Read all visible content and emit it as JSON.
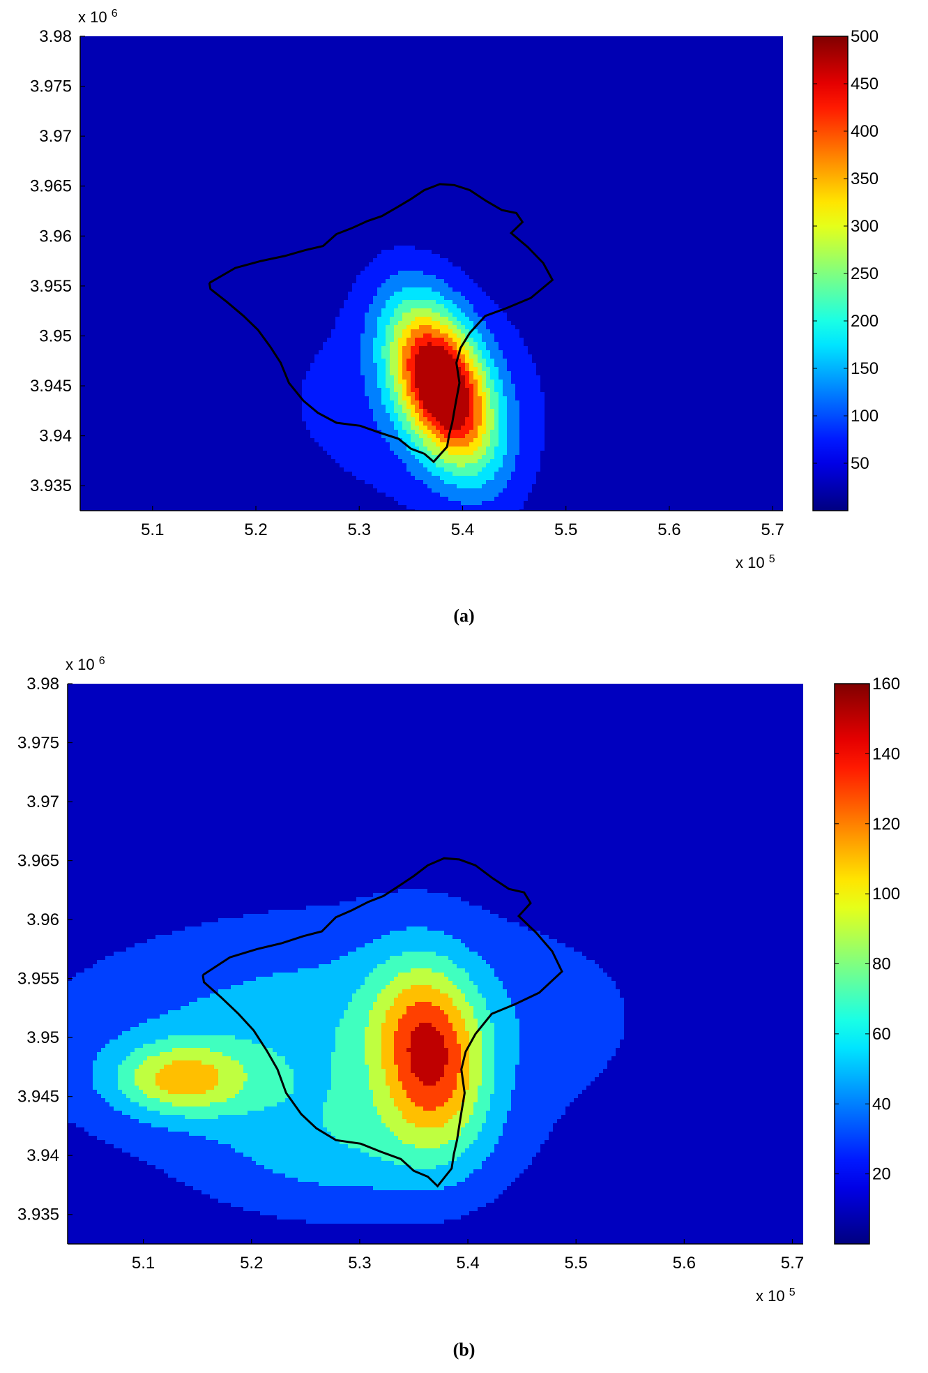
{
  "figures": [
    {
      "id": "a",
      "caption": "(a)",
      "chart_data": {
        "type": "heatmap",
        "subtype": "filled-contour-map",
        "title": "",
        "xlabel": "",
        "ylabel": "",
        "xlim": [
          503000,
          571000
        ],
        "ylim": [
          3932500,
          3980000
        ],
        "x_ticks": [
          510000,
          520000,
          530000,
          540000,
          550000,
          560000,
          570000
        ],
        "x_tick_labels": [
          "5.1",
          "5.2",
          "5.3",
          "5.4",
          "5.5",
          "5.6",
          "5.7"
        ],
        "x_multiplier": "x 10",
        "x_multiplier_exp": "5",
        "y_ticks": [
          3935000,
          3940000,
          3945000,
          3950000,
          3955000,
          3960000,
          3965000,
          3970000,
          3975000,
          3980000
        ],
        "y_tick_labels": [
          "3.935",
          "3.94",
          "3.945",
          "3.95",
          "3.955",
          "3.96",
          "3.965",
          "3.97",
          "3.975",
          "3.98"
        ],
        "y_multiplier": "x 10",
        "y_multiplier_exp": "6",
        "colorbar": {
          "min": 0,
          "max": 500,
          "ticks": [
            50,
            100,
            150,
            200,
            250,
            300,
            350,
            400,
            450,
            500
          ],
          "tick_labels": [
            "50",
            "100",
            "150",
            "200",
            "250",
            "300",
            "350",
            "400",
            "450",
            "500"
          ]
        },
        "contour_step": 50,
        "sources": [
          {
            "x": 538000,
            "y": 3945000,
            "value": 500,
            "sx": 3000,
            "sy": 6000,
            "rot": 0.35
          },
          {
            "x": 537000,
            "y": 3943000,
            "value": 60,
            "sx": 9000,
            "sy": 9000,
            "rot": 0
          },
          {
            "x": 524000,
            "y": 3944000,
            "value": 18,
            "sx": 16000,
            "sy": 7000,
            "rot": 0.1
          }
        ],
        "background_value": 10
      }
    },
    {
      "id": "b",
      "caption": "(b)",
      "chart_data": {
        "type": "heatmap",
        "subtype": "filled-contour-map",
        "title": "",
        "xlabel": "",
        "ylabel": "",
        "xlim": [
          503000,
          571000
        ],
        "ylim": [
          3932500,
          3980000
        ],
        "x_ticks": [
          510000,
          520000,
          530000,
          540000,
          550000,
          560000,
          570000
        ],
        "x_tick_labels": [
          "5.1",
          "5.2",
          "5.3",
          "5.4",
          "5.5",
          "5.6",
          "5.7"
        ],
        "x_multiplier": "x 10",
        "x_multiplier_exp": "5",
        "y_ticks": [
          3935000,
          3940000,
          3945000,
          3950000,
          3955000,
          3960000,
          3965000,
          3970000,
          3975000,
          3980000
        ],
        "y_tick_labels": [
          "3.935",
          "3.94",
          "3.945",
          "3.95",
          "3.955",
          "3.96",
          "3.965",
          "3.97",
          "3.975",
          "3.98"
        ],
        "y_multiplier": "x 10",
        "y_multiplier_exp": "6",
        "colorbar": {
          "min": 0,
          "max": 160,
          "ticks": [
            20,
            40,
            60,
            80,
            100,
            120,
            140,
            160
          ],
          "tick_labels": [
            "20",
            "40",
            "60",
            "80",
            "100",
            "120",
            "140",
            "160"
          ]
        },
        "contour_step": 20,
        "sources": [
          {
            "x": 536500,
            "y": 3948500,
            "value": 105,
            "sx": 3500,
            "sy": 5500,
            "rot": 0.15
          },
          {
            "x": 513500,
            "y": 3946500,
            "value": 75,
            "sx": 4500,
            "sy": 2200,
            "rot": 0
          },
          {
            "x": 527000,
            "y": 3950500,
            "value": 45,
            "sx": 17000,
            "sy": 6500,
            "rot": 0.05
          },
          {
            "x": 529000,
            "y": 3940500,
            "value": 35,
            "sx": 9000,
            "sy": 4000,
            "rot": 0
          }
        ],
        "background_value": 8
      }
    }
  ],
  "coastline": [
    [
      515500,
      3955300
    ],
    [
      518000,
      3956800
    ],
    [
      520500,
      3957500
    ],
    [
      522800,
      3958000
    ],
    [
      524800,
      3958600
    ],
    [
      526500,
      3959000
    ],
    [
      527800,
      3960200
    ],
    [
      529300,
      3960800
    ],
    [
      530800,
      3961500
    ],
    [
      532200,
      3962000
    ],
    [
      533700,
      3962900
    ],
    [
      535000,
      3963700
    ],
    [
      536300,
      3964600
    ],
    [
      537800,
      3965200
    ],
    [
      539200,
      3965100
    ],
    [
      540700,
      3964600
    ],
    [
      542300,
      3963500
    ],
    [
      543800,
      3962600
    ],
    [
      545200,
      3962300
    ],
    [
      545800,
      3961400
    ],
    [
      544700,
      3960300
    ],
    [
      546300,
      3958900
    ],
    [
      547800,
      3957300
    ],
    [
      548700,
      3955600
    ],
    [
      546600,
      3953800
    ],
    [
      544300,
      3952800
    ],
    [
      542200,
      3952000
    ],
    [
      540700,
      3950300
    ],
    [
      539800,
      3948800
    ],
    [
      539400,
      3947300
    ],
    [
      539700,
      3945300
    ],
    [
      539300,
      3943100
    ],
    [
      539000,
      3941300
    ],
    [
      538700,
      3940100
    ],
    [
      538500,
      3938900
    ],
    [
      537200,
      3937400
    ],
    [
      536300,
      3938200
    ],
    [
      535000,
      3938700
    ],
    [
      533800,
      3939700
    ],
    [
      532000,
      3940300
    ],
    [
      530100,
      3941000
    ],
    [
      527800,
      3941300
    ],
    [
      526000,
      3942300
    ],
    [
      524600,
      3943500
    ],
    [
      523200,
      3945300
    ],
    [
      522400,
      3947300
    ],
    [
      521400,
      3948900
    ],
    [
      520200,
      3950600
    ],
    [
      518800,
      3952000
    ],
    [
      517200,
      3953400
    ],
    [
      515600,
      3954700
    ],
    [
      515500,
      3955300
    ]
  ]
}
